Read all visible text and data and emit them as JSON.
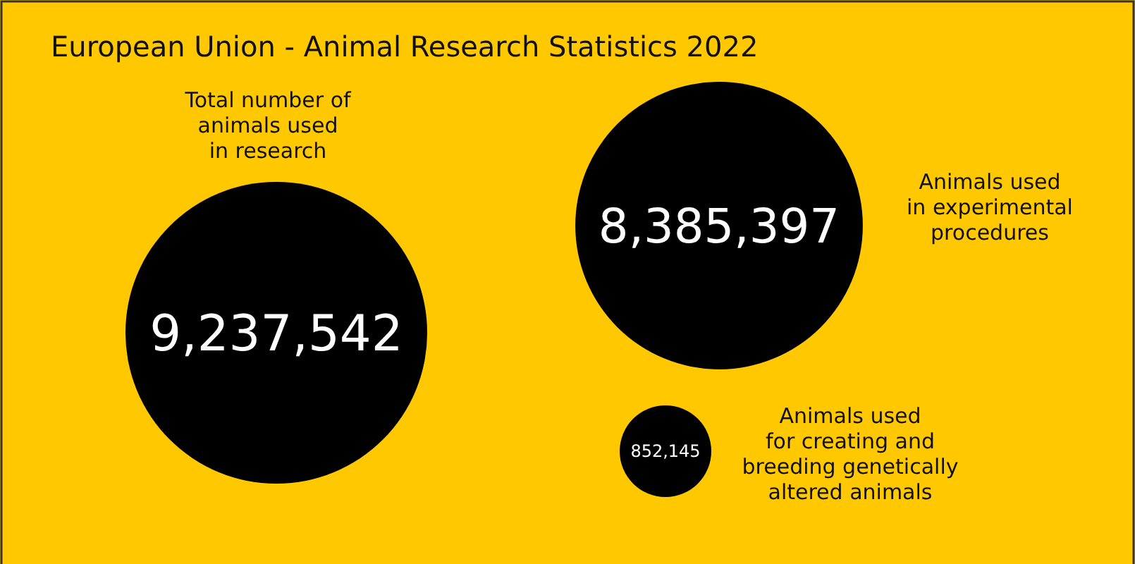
{
  "chart_data": {
    "type": "other",
    "title": "European Union - Animal Research Statistics 2022",
    "categories": [
      "Total number of\nanimals used\nin research",
      "Animals used\nin experimental\nprocedures",
      "Animals used\nfor creating and\nbreeding genetically\naltered animals"
    ],
    "values": [
      9237542,
      8385397,
      852145
    ],
    "value_labels": [
      "9,237,542",
      "8,385,397",
      "852,145"
    ],
    "colors": [
      "#000000",
      "#000000",
      "#000000"
    ]
  }
}
